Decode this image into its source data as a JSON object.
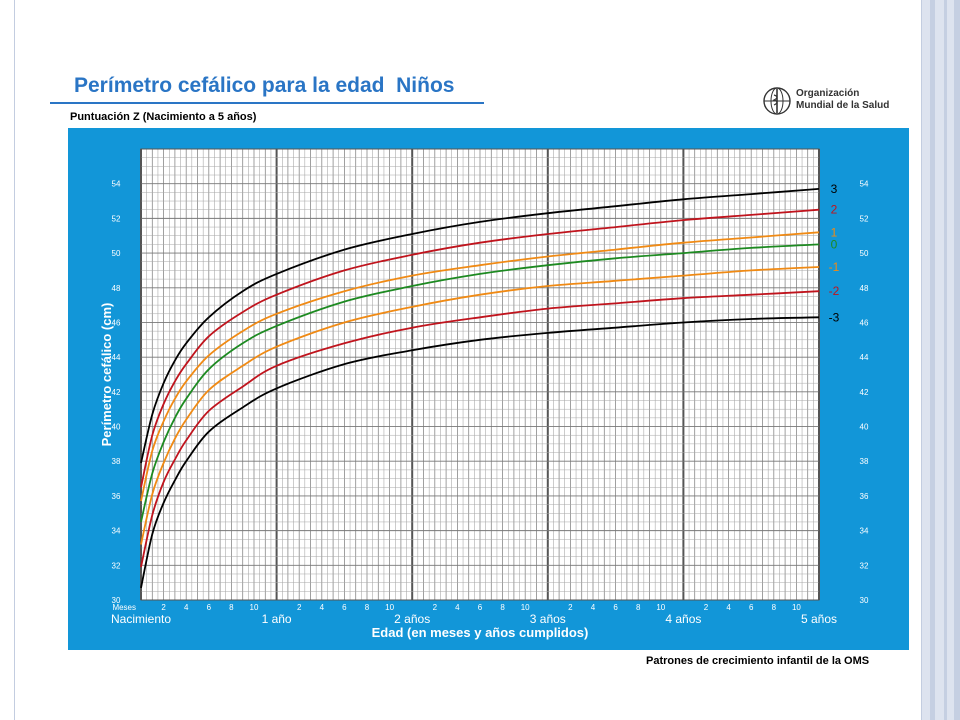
{
  "page": {
    "title": "Perímetro cefálico para la edad  Niños",
    "subtitle": "Puntuación Z (Nacimiento a 5 años)",
    "who_logo": {
      "line1": "Organización",
      "line2": "Mundial de la Salud",
      "icon": "who-emblem-icon"
    },
    "footer": "Patrones de crecimiento infantil de la OMS",
    "colors": {
      "panel": "#1296d8",
      "title": "#2a75c5",
      "grid": "#7d7d7d"
    }
  },
  "chart_data": {
    "type": "line",
    "title": "Perímetro cefálico para la edad  Niños",
    "subtitle": "Puntuación Z (Nacimiento a 5 años)",
    "xlabel": "Edad (en meses y años cumplidos)",
    "ylabel": "Perímetro cefálico (cm)",
    "x_unit_label": "Meses",
    "xlim": [
      0,
      60
    ],
    "ylim": [
      30,
      56
    ],
    "y_ticks": [
      30,
      32,
      34,
      36,
      38,
      40,
      42,
      44,
      46,
      48,
      50,
      52,
      54
    ],
    "x_month_ticks": [
      2,
      4,
      6,
      8,
      10
    ],
    "x_year_labels": [
      {
        "month": 0,
        "label": "Nacimiento"
      },
      {
        "month": 12,
        "label": "1 año"
      },
      {
        "month": 24,
        "label": "2 años"
      },
      {
        "month": 36,
        "label": "3 años"
      },
      {
        "month": 48,
        "label": "4 años"
      },
      {
        "month": 60,
        "label": "5 años"
      }
    ],
    "grid": true,
    "legend": "right",
    "x": [
      0,
      1,
      2,
      3,
      4,
      6,
      9,
      12,
      18,
      24,
      30,
      36,
      42,
      48,
      54,
      60
    ],
    "series": [
      {
        "name": "3",
        "color": "#000000",
        "values": [
          37.9,
          40.7,
          42.5,
          43.8,
          44.8,
          46.3,
          47.8,
          48.8,
          50.2,
          51.1,
          51.8,
          52.3,
          52.7,
          53.1,
          53.4,
          53.7
        ]
      },
      {
        "name": "2",
        "color": "#c0141d",
        "values": [
          36.5,
          39.5,
          41.3,
          42.6,
          43.6,
          45.2,
          46.6,
          47.6,
          49.0,
          49.9,
          50.6,
          51.1,
          51.5,
          51.9,
          52.2,
          52.5
        ]
      },
      {
        "name": "1",
        "color": "#f08a14",
        "values": [
          35.7,
          38.6,
          40.3,
          41.6,
          42.6,
          44.1,
          45.5,
          46.5,
          47.8,
          48.7,
          49.3,
          49.8,
          50.2,
          50.6,
          50.9,
          51.2
        ]
      },
      {
        "name": "0",
        "color": "#1d8a21",
        "values": [
          34.5,
          37.3,
          39.1,
          40.5,
          41.6,
          43.3,
          44.8,
          45.8,
          47.2,
          48.1,
          48.8,
          49.3,
          49.7,
          50.0,
          50.3,
          50.5
        ]
      },
      {
        "name": "-1",
        "color": "#f08a14",
        "values": [
          33.2,
          36.1,
          37.9,
          39.3,
          40.4,
          42.1,
          43.5,
          44.6,
          46.0,
          46.9,
          47.6,
          48.1,
          48.4,
          48.7,
          49.0,
          49.2
        ]
      },
      {
        "name": "-2",
        "color": "#c0141d",
        "values": [
          31.9,
          34.9,
          36.8,
          38.1,
          39.2,
          40.9,
          42.3,
          43.5,
          44.8,
          45.7,
          46.3,
          46.8,
          47.1,
          47.4,
          47.6,
          47.8
        ]
      },
      {
        "name": "-3",
        "color": "#000000",
        "values": [
          30.7,
          33.8,
          35.6,
          36.9,
          38.0,
          39.7,
          41.1,
          42.2,
          43.6,
          44.4,
          45.0,
          45.4,
          45.7,
          46.0,
          46.2,
          46.3
        ]
      }
    ]
  }
}
